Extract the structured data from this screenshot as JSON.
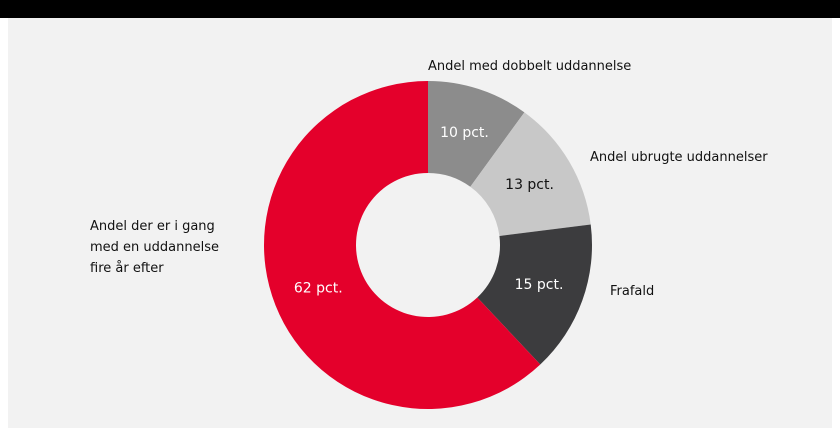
{
  "chart_data": {
    "type": "donut",
    "categories": [
      "Andel med dobbelt uddannelse",
      "Andel ubrugte uddannelser",
      "Frafald",
      "Andel der er i gang med en uddannelse fire år efter"
    ],
    "values": [
      10,
      13,
      15,
      62
    ],
    "value_labels": [
      "10 pct.",
      "13 pct.",
      "15 pct.",
      "62 pct."
    ],
    "colors": [
      "#8c8c8c",
      "#c8c8c8",
      "#3c3c3e",
      "#e4002b"
    ]
  }
}
